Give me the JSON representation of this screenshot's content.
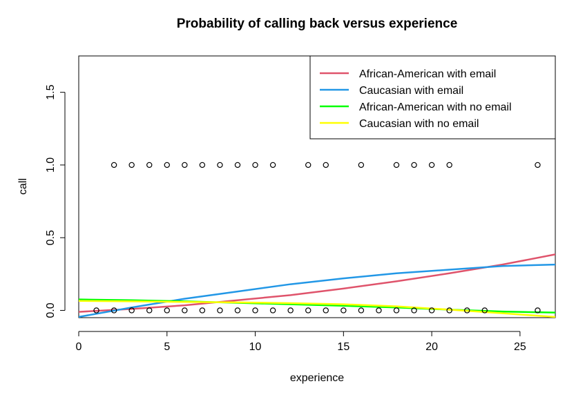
{
  "chart_data": {
    "type": "scatter",
    "title": "Probability of calling back versus experience",
    "xlabel": "experience",
    "ylabel": "call",
    "xlim": [
      0,
      27
    ],
    "ylim": [
      -0.05,
      1.75
    ],
    "xticks": [
      0,
      5,
      10,
      15,
      20,
      25
    ],
    "yticks": [
      0.0,
      0.5,
      1.0,
      1.5
    ],
    "xtick_labels": [
      "0",
      "5",
      "10",
      "15",
      "20",
      "25"
    ],
    "ytick_labels": [
      "0.0",
      "0.5",
      "1.0",
      "1.5"
    ],
    "grid": false,
    "legend_position": "top-right",
    "points": {
      "x": [
        2,
        3,
        4,
        5,
        6,
        7,
        8,
        9,
        10,
        11,
        13,
        14,
        16,
        18,
        19,
        20,
        21,
        26,
        1,
        2,
        3,
        4,
        5,
        6,
        7,
        8,
        9,
        10,
        11,
        12,
        13,
        14,
        15,
        16,
        17,
        18,
        19,
        20,
        21,
        22,
        23,
        26
      ],
      "y": [
        1,
        1,
        1,
        1,
        1,
        1,
        1,
        1,
        1,
        1,
        1,
        1,
        1,
        1,
        1,
        1,
        1,
        1,
        0,
        0,
        0,
        0,
        0,
        0,
        0,
        0,
        0,
        0,
        0,
        0,
        0,
        0,
        0,
        0,
        0,
        0,
        0,
        0,
        0,
        0,
        0,
        0
      ]
    },
    "series": [
      {
        "name": "African-American with email",
        "color": "#DF536B",
        "x": [
          0,
          3,
          6,
          9,
          12,
          15,
          18,
          21,
          24,
          27
        ],
        "y": [
          -0.01,
          0.01,
          0.035,
          0.07,
          0.105,
          0.15,
          0.2,
          0.255,
          0.315,
          0.385
        ]
      },
      {
        "name": "Caucasian with email",
        "color": "#2297E6",
        "x": [
          0,
          3,
          6,
          9,
          12,
          15,
          18,
          21,
          24,
          27
        ],
        "y": [
          -0.045,
          0.02,
          0.08,
          0.13,
          0.18,
          0.22,
          0.255,
          0.28,
          0.305,
          0.315
        ]
      },
      {
        "name": "African-American with no email",
        "color": "#00FF00",
        "x": [
          0,
          3,
          6,
          9,
          12,
          15,
          18,
          21,
          24,
          27
        ],
        "y": [
          0.075,
          0.07,
          0.062,
          0.052,
          0.042,
          0.032,
          0.02,
          0.005,
          -0.008,
          -0.015
        ]
      },
      {
        "name": "Caucasian with no email",
        "color": "#FFFF00",
        "x": [
          0,
          3,
          6,
          9,
          12,
          15,
          18,
          21,
          24,
          27
        ],
        "y": [
          0.065,
          0.062,
          0.058,
          0.055,
          0.05,
          0.042,
          0.028,
          0.005,
          -0.02,
          -0.045
        ]
      }
    ]
  }
}
